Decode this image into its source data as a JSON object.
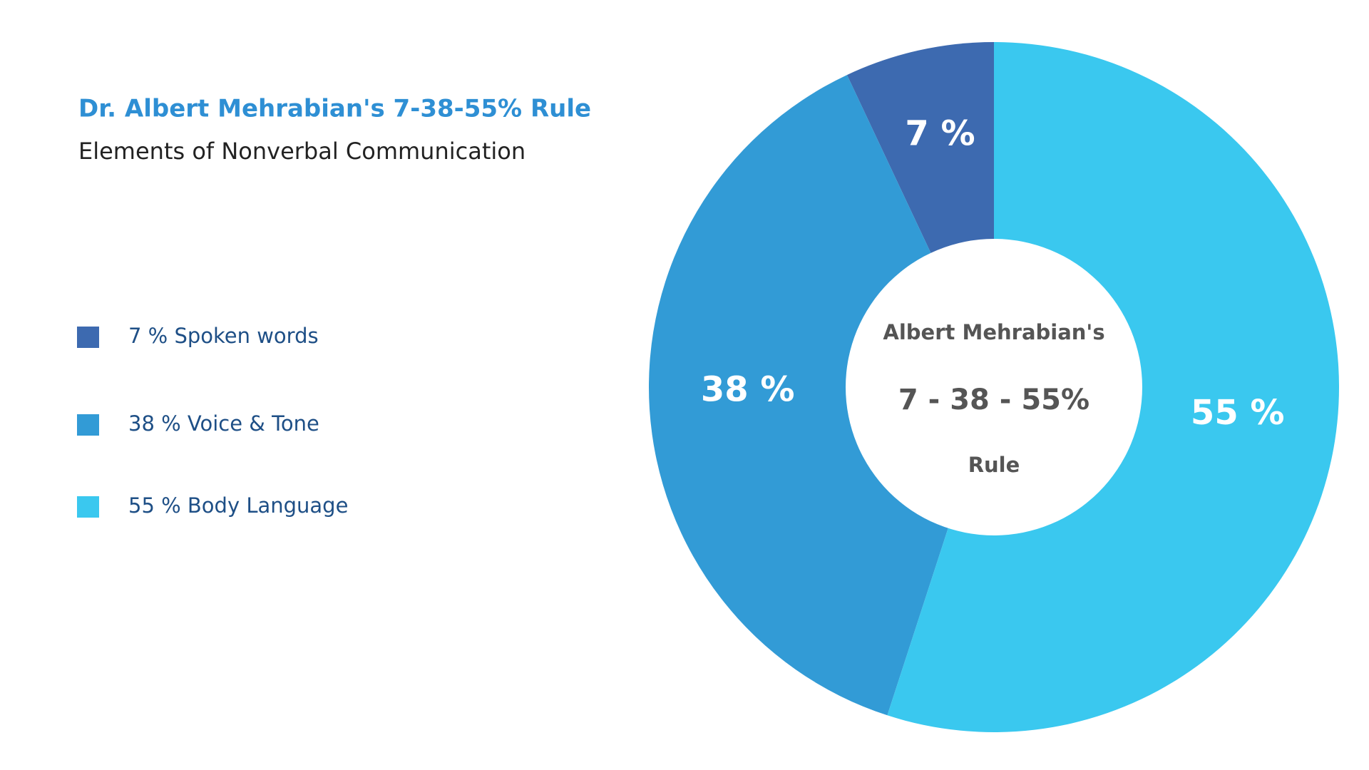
{
  "chart_data": {
    "type": "donut",
    "title": "Dr. Albert Mehrabian's 7-38-55% Rule",
    "subtitle": "Elements of Nonverbal Communication",
    "categories": [
      "7 % Spoken words",
      "38 % Voice & Tone",
      "55 % Body Language"
    ],
    "values": [
      7,
      38,
      55
    ],
    "value_labels": [
      "7 %",
      "38 %",
      "55 %"
    ],
    "colors": [
      "#3d6ab0",
      "#329bd6",
      "#3ac8ef"
    ],
    "center_text": [
      "Albert Mehrabian's",
      "7 - 38 - 55%",
      "Rule"
    ],
    "legend": "left"
  }
}
